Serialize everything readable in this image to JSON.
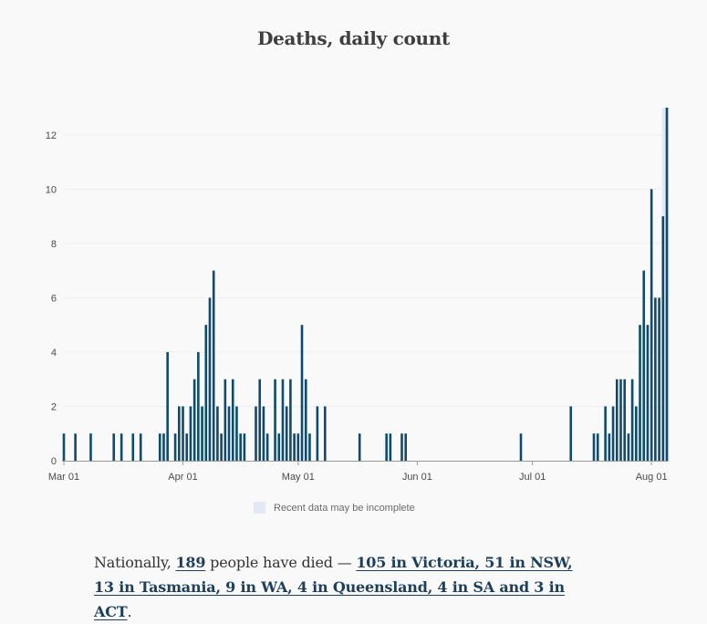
{
  "chart_data": {
    "type": "bar",
    "title": "Deaths, daily count",
    "xlabel": "",
    "ylabel": "",
    "ylim": [
      0,
      13
    ],
    "y_ticks": [
      "0",
      "2",
      "4",
      "6",
      "8",
      "10",
      "12"
    ],
    "x_ticks": [
      "Mar 01",
      "Apr 01",
      "May 01",
      "Jun 01",
      "Jul 01",
      "Aug 01"
    ],
    "start_date": "Mar 01",
    "values": [
      1,
      0,
      0,
      1,
      0,
      0,
      0,
      1,
      0,
      0,
      0,
      0,
      0,
      1,
      0,
      1,
      0,
      0,
      1,
      0,
      1,
      0,
      0,
      0,
      0,
      1,
      1,
      4,
      0,
      1,
      2,
      2,
      1,
      2,
      3,
      4,
      2,
      5,
      6,
      7,
      2,
      1,
      3,
      2,
      3,
      2,
      1,
      1,
      0,
      0,
      2,
      3,
      2,
      1,
      0,
      3,
      1,
      3,
      2,
      3,
      1,
      1,
      5,
      3,
      1,
      0,
      2,
      0,
      2,
      0,
      0,
      0,
      0,
      0,
      0,
      0,
      0,
      1,
      0,
      0,
      0,
      0,
      0,
      0,
      1,
      1,
      0,
      0,
      1,
      1,
      0,
      0,
      0,
      0,
      0,
      0,
      0,
      0,
      0,
      0,
      0,
      0,
      0,
      0,
      0,
      0,
      0,
      0,
      0,
      0,
      0,
      0,
      0,
      0,
      0,
      0,
      0,
      0,
      0,
      1,
      0,
      0,
      0,
      0,
      0,
      0,
      0,
      0,
      0,
      0,
      0,
      0,
      2,
      0,
      0,
      0,
      0,
      0,
      1,
      1,
      0,
      2,
      1,
      2,
      3,
      3,
      3,
      1,
      3,
      2,
      5,
      7,
      5,
      10,
      6,
      6,
      9,
      13
    ],
    "incomplete_days": 2,
    "bar_color": "#0f4b6e",
    "incomplete_region_color": "#e3e8f2"
  },
  "legend": {
    "incomplete_label": "Recent data may be incomplete"
  },
  "summary": {
    "prefix": "Nationally, ",
    "total": "189",
    "middle": " people have died — ",
    "breakdown": "105 in Victoria, 51 in NSW, 13 in Tasmania, 9 in WA, 4 in Queensland, 4 in SA and 3 in ACT",
    "suffix": "."
  }
}
